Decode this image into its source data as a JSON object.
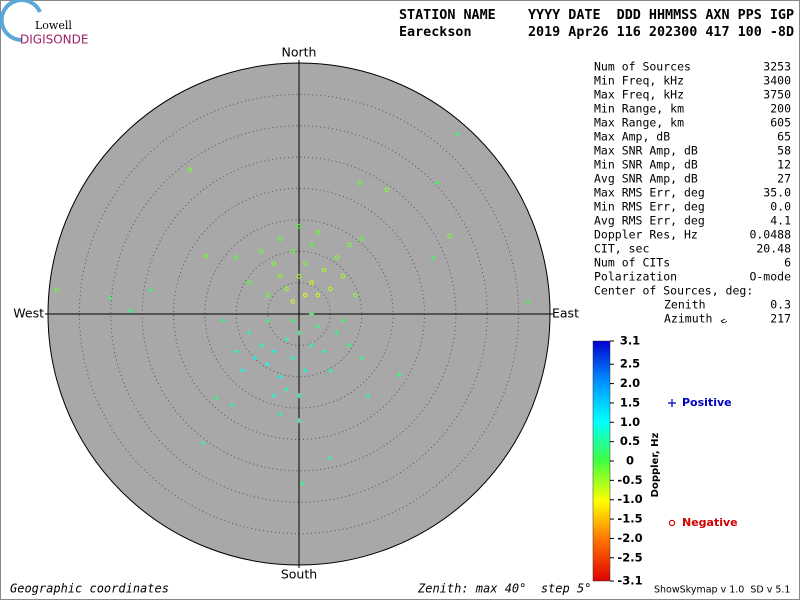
{
  "logo": {
    "top": "Lowell",
    "bottom": "DIGISONDE"
  },
  "header": {
    "line1": "STATION NAME    YYYY DATE  DDD HHMMSS AXN PPS IGP",
    "line2": "Eareckson       2019 Apr26 116 202300 417 100 -8D"
  },
  "stats": {
    "rows": [
      [
        "Num of Sources",
        "3253"
      ],
      [
        "Min Freq, kHz",
        "3400"
      ],
      [
        "Max Freq, kHz",
        "3750"
      ],
      [
        "Min Range, km",
        "200"
      ],
      [
        "Max Range, km",
        "605"
      ],
      [
        "Max Amp, dB",
        "65"
      ],
      [
        "Max SNR Amp, dB",
        "58"
      ],
      [
        "Min SNR Amp, dB",
        "12"
      ],
      [
        "Avg SNR Amp, dB",
        "27"
      ],
      [
        "Max RMS Err, deg",
        "35.0"
      ],
      [
        "Min RMS Err, deg",
        "0.0"
      ],
      [
        "Avg RMS Err, deg",
        "4.1"
      ],
      [
        "Doppler Res, Hz",
        "0.0488"
      ],
      [
        "CIT, sec",
        "20.48"
      ],
      [
        "Num of CITs",
        "6"
      ],
      [
        "Polarization",
        "O-mode"
      ]
    ],
    "center_heading": "Center of Sources, deg:",
    "center": [
      [
        "Zenith",
        "0.3"
      ],
      [
        "Azimuth",
        "217"
      ]
    ]
  },
  "footer": {
    "left": "Geographic coordinates",
    "middle": "Zenith: max 40°  step 5°",
    "right": "ShowSkymap v 1.0  SD v 5.1"
  },
  "chart_data": {
    "type": "skymap",
    "directions": {
      "north": "North",
      "south": "South",
      "east": "East",
      "west": "West"
    },
    "zenith_max": 40,
    "zenith_step": 5,
    "colorbar": {
      "label": "Doppler, Hz",
      "colors": [
        "#e00000",
        "#ff7000",
        "#ffff00",
        "#40ff40",
        "#00ffff",
        "#0090ff",
        "#0000d0"
      ],
      "ticks": [
        {
          "value": 3.1,
          "label": "3.1"
        },
        {
          "value": 2.5,
          "label": "2.5"
        },
        {
          "value": 2,
          "label": "2.0"
        },
        {
          "value": 1.5,
          "label": "1.5"
        },
        {
          "value": 1,
          "label": "1.0"
        },
        {
          "value": 0.5,
          "label": "0.5"
        },
        0,
        {
          "value": -0.5,
          "label": "-0.5"
        },
        {
          "value": -1,
          "label": "-1.0"
        },
        {
          "value": -1.5,
          "label": "-1.5"
        },
        {
          "value": -2,
          "label": "-2.0"
        },
        {
          "value": -2.5,
          "label": "-2.5"
        },
        {
          "value": -3.1,
          "label": "-3.1"
        }
      ]
    },
    "series": [
      {
        "name": "Positive",
        "color": "#0000c0",
        "marker": "plus",
        "x": [
          -2,
          -4,
          -1,
          -5,
          0,
          2,
          -3,
          -6,
          1,
          -7,
          3,
          4,
          -2,
          0,
          -8,
          5,
          6,
          -9,
          8,
          -4,
          -1,
          2,
          -5,
          7,
          -10,
          10,
          -3,
          0,
          25.2,
          22,
          -30.1,
          -26.9,
          36.5,
          -15.3,
          0.5,
          4.9,
          -13.2,
          -10.7,
          16,
          21.4,
          -23.6,
          -12,
          11
        ],
        "y": [
          -4,
          -6,
          -7,
          -8,
          -3,
          -5,
          -10,
          -5,
          -9,
          -7,
          -2,
          -6,
          -12,
          -13,
          -3,
          -9,
          -3,
          -9,
          -5,
          -13,
          -1,
          0,
          -1,
          -1,
          -6,
          -7,
          -16,
          -17,
          28.7,
          20.9,
          2.6,
          0.5,
          2,
          -20.6,
          -27,
          -23,
          -13.4,
          -14.5,
          -9.7,
          8.9,
          3.8,
          -1,
          -13
        ],
        "doppler": [
          0.6,
          0.9,
          0.8,
          1.0,
          0.4,
          0.6,
          0.9,
          0.7,
          0.8,
          1.1,
          0.3,
          0.5,
          0.7,
          0.6,
          0.5,
          0.6,
          0.3,
          0.9,
          0.4,
          0.8,
          0.2,
          0.1,
          0.3,
          0.2,
          0.6,
          0.4,
          0.6,
          0.5,
          0.2,
          0.1,
          0.2,
          0.3,
          0.1,
          0.5,
          0.4,
          0.5,
          0.4,
          0.5,
          0.3,
          0.2,
          0.2,
          0.3,
          0.5
        ]
      },
      {
        "name": "Negative",
        "color": "#d00000",
        "marker": "circle",
        "x": [
          0,
          2,
          -2,
          3,
          -3,
          1,
          -1,
          4,
          -4,
          5,
          -5,
          2,
          0,
          -6,
          6,
          7,
          1,
          -1,
          3,
          -3,
          8,
          -8,
          9,
          10,
          -10,
          -17.4,
          9.7,
          14,
          -38.6,
          24,
          -14.9
        ],
        "y": [
          6,
          5,
          4,
          3,
          6,
          8,
          10,
          7,
          8,
          4,
          3,
          11,
          14,
          10,
          9,
          6,
          3,
          2,
          13,
          12,
          11,
          5,
          3,
          12,
          9,
          23,
          20.9,
          19.8,
          3.8,
          12.4,
          9.2
        ],
        "doppler": [
          -0.6,
          -0.8,
          -0.5,
          -0.7,
          -0.4,
          -0.3,
          -0.2,
          -0.5,
          -0.3,
          -0.6,
          -0.2,
          -0.1,
          -0.1,
          -0.2,
          -0.4,
          -0.5,
          -0.9,
          -0.7,
          -0.2,
          -0.2,
          -0.3,
          -0.1,
          -0.4,
          -0.2,
          -0.1,
          -0.3,
          -0.2,
          -0.3,
          -0.2,
          -0.3,
          -0.2
        ]
      }
    ]
  }
}
